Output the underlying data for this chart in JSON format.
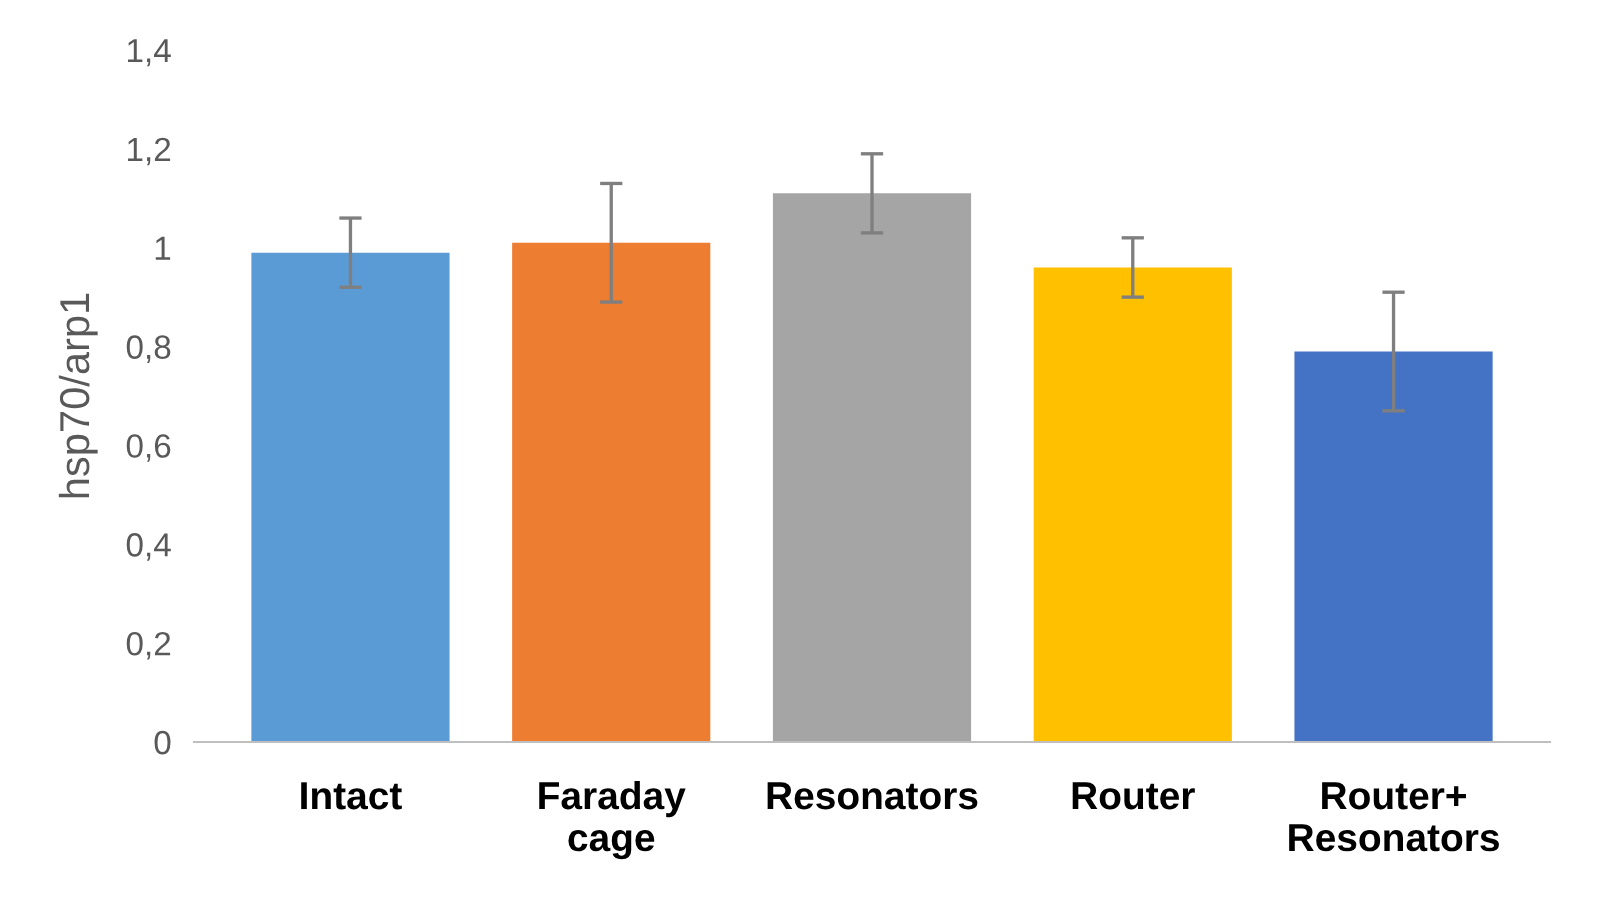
{
  "chart_data": {
    "type": "bar",
    "ylabel": "hsp70/arp1",
    "categories": [
      "Intact",
      "Faraday\ncage",
      "Resonators",
      "Router",
      "Router+\nResonators"
    ],
    "values": [
      0.99,
      1.01,
      1.11,
      0.96,
      0.79
    ],
    "errors": [
      0.07,
      0.12,
      0.08,
      0.06,
      0.12
    ],
    "colors": [
      "#5b9bd5",
      "#ed7d31",
      "#a5a5a5",
      "#ffc000",
      "#4472c4"
    ],
    "ylim": [
      0,
      1.4
    ],
    "yticks": [
      {
        "value": 0,
        "label": "0"
      },
      {
        "value": 0.2,
        "label": "0,2"
      },
      {
        "value": 0.4,
        "label": "0,4"
      },
      {
        "value": 0.6,
        "label": "0,6"
      },
      {
        "value": 0.8,
        "label": "0,8"
      },
      {
        "value": 1,
        "label": "1"
      },
      {
        "value": 1.2,
        "label": "1,2"
      },
      {
        "value": 1.4,
        "label": "1,4"
      }
    ],
    "grid": false,
    "legend": false
  }
}
